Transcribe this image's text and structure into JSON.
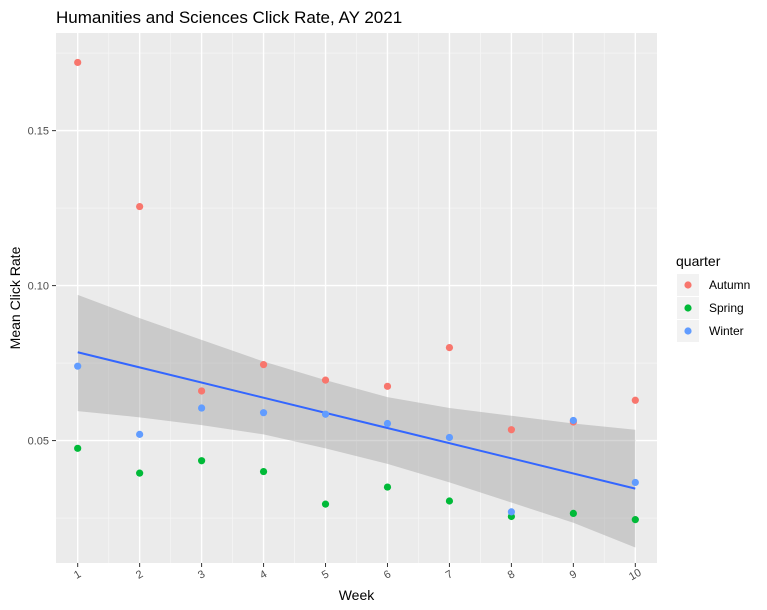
{
  "chart_data": {
    "type": "scatter",
    "title": "Humanities and Sciences Click Rate, AY 2021",
    "xlabel": "Week",
    "ylabel": "Mean Click Rate",
    "xlim": [
      0.65,
      10.35
    ],
    "ylim": [
      0.0105,
      0.1815
    ],
    "x_ticks": [
      1,
      2,
      3,
      4,
      5,
      6,
      7,
      8,
      9,
      10
    ],
    "y_ticks": [
      0.05,
      0.1,
      0.15
    ],
    "y_tick_labels": [
      "0.05",
      "0.10",
      "0.15"
    ],
    "grid": true,
    "legend": {
      "title": "quarter",
      "position": "right"
    },
    "series": [
      {
        "name": "Autumn",
        "color": "#F8766D",
        "points": [
          [
            1,
            0.172
          ],
          [
            2,
            0.1255
          ],
          [
            3,
            0.066
          ],
          [
            4,
            0.0745
          ],
          [
            5,
            0.0695
          ],
          [
            6,
            0.0675
          ],
          [
            7,
            0.08
          ],
          [
            8,
            0.0535
          ],
          [
            9,
            0.056
          ],
          [
            10,
            0.063
          ]
        ]
      },
      {
        "name": "Spring",
        "color": "#00BA38",
        "points": [
          [
            1,
            0.0475
          ],
          [
            2,
            0.0395
          ],
          [
            3,
            0.0435
          ],
          [
            4,
            0.04
          ],
          [
            5,
            0.0295
          ],
          [
            6,
            0.035
          ],
          [
            7,
            0.0305
          ],
          [
            8,
            0.0255
          ],
          [
            9,
            0.0265
          ],
          [
            10,
            0.0245
          ]
        ]
      },
      {
        "name": "Winter",
        "color": "#619CFF",
        "points": [
          [
            1,
            0.074
          ],
          [
            2,
            0.052
          ],
          [
            3,
            0.0605
          ],
          [
            4,
            0.059
          ],
          [
            5,
            0.0585
          ],
          [
            6,
            0.0555
          ],
          [
            7,
            0.051
          ],
          [
            8,
            0.027
          ],
          [
            9,
            0.0565
          ],
          [
            10,
            0.0365
          ]
        ]
      }
    ],
    "trend": {
      "method": "lm",
      "color": "#3366FF",
      "start": [
        1,
        0.0785
      ],
      "end": [
        10,
        0.0345
      ],
      "ci_color": "#999999",
      "ci_upper": [
        [
          1,
          0.097
        ],
        [
          2,
          0.0895
        ],
        [
          3,
          0.0825
        ],
        [
          4,
          0.0755
        ],
        [
          5,
          0.0695
        ],
        [
          6,
          0.064
        ],
        [
          7,
          0.0605
        ],
        [
          8,
          0.058
        ],
        [
          9,
          0.0555
        ],
        [
          10,
          0.0535
        ]
      ],
      "ci_lower": [
        [
          1,
          0.0595
        ],
        [
          2,
          0.0575
        ],
        [
          3,
          0.055
        ],
        [
          4,
          0.052
        ],
        [
          5,
          0.0475
        ],
        [
          6,
          0.0425
        ],
        [
          7,
          0.0365
        ],
        [
          8,
          0.03
        ],
        [
          9,
          0.0235
        ],
        [
          10,
          0.0155
        ]
      ]
    }
  }
}
